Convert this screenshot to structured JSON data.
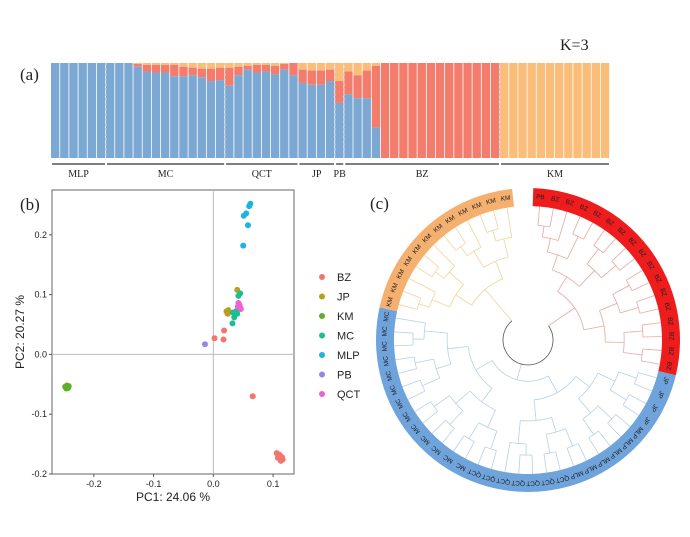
{
  "panel_labels": {
    "a": "(a)",
    "b": "(b)",
    "c": "(c)"
  },
  "colors": {
    "blue": "#7ca9d4",
    "red": "#f47c6c",
    "orange": "#fbbd7a",
    "tree_red": "#ee1c1c",
    "tree_orange": "#f5b070",
    "tree_blue": "#6fa3dc"
  },
  "chart_data": [
    {
      "type": "bar",
      "subtype": "stacked-admixture",
      "title": "K=3",
      "components": [
        "blue",
        "red",
        "orange"
      ],
      "groups": [
        {
          "name": "MLP",
          "n": 6
        },
        {
          "name": "MC",
          "n": 13
        },
        {
          "name": "QCT",
          "n": 8
        },
        {
          "name": "JP",
          "n": 4
        },
        {
          "name": "PB",
          "n": 1
        },
        {
          "name": "BZ",
          "n": 17
        },
        {
          "name": "KM",
          "n": 12
        }
      ],
      "samples": [
        [
          1,
          0,
          0
        ],
        [
          1,
          0,
          0
        ],
        [
          1,
          0,
          0
        ],
        [
          1,
          0,
          0
        ],
        [
          1,
          0,
          0
        ],
        [
          1,
          0,
          0
        ],
        [
          1,
          0,
          0
        ],
        [
          1,
          0,
          0
        ],
        [
          1,
          0,
          0
        ],
        [
          0.96,
          0.03,
          0.01
        ],
        [
          0.91,
          0.07,
          0.02
        ],
        [
          0.9,
          0.08,
          0.02
        ],
        [
          0.9,
          0.08,
          0.02
        ],
        [
          0.86,
          0.12,
          0.02
        ],
        [
          0.86,
          0.1,
          0.04
        ],
        [
          0.87,
          0.08,
          0.05
        ],
        [
          0.85,
          0.09,
          0.06
        ],
        [
          0.81,
          0.13,
          0.06
        ],
        [
          0.82,
          0.13,
          0.05
        ],
        [
          0.76,
          0.19,
          0.05
        ],
        [
          0.87,
          0.09,
          0.04
        ],
        [
          0.93,
          0.04,
          0.03
        ],
        [
          0.9,
          0.08,
          0.02
        ],
        [
          0.91,
          0.07,
          0.02
        ],
        [
          0.88,
          0.09,
          0.03
        ],
        [
          0.93,
          0.06,
          0.01
        ],
        [
          0.87,
          0.13,
          0
        ],
        [
          0.79,
          0.14,
          0.07
        ],
        [
          0.77,
          0.15,
          0.08
        ],
        [
          0.77,
          0.15,
          0.08
        ],
        [
          0.81,
          0.12,
          0.07
        ],
        [
          0.58,
          0.23,
          0.19
        ],
        [
          0.67,
          0.24,
          0.09
        ],
        [
          0.63,
          0.24,
          0.13
        ],
        [
          0.63,
          0.29,
          0.08
        ],
        [
          0.32,
          0.65,
          0.03
        ],
        [
          0,
          1,
          0
        ],
        [
          0,
          1,
          0
        ],
        [
          0,
          1,
          0
        ],
        [
          0,
          1,
          0
        ],
        [
          0,
          1,
          0
        ],
        [
          0,
          1,
          0
        ],
        [
          0,
          1,
          0
        ],
        [
          0,
          1,
          0
        ],
        [
          0,
          1,
          0
        ],
        [
          0,
          1,
          0
        ],
        [
          0,
          1,
          0
        ],
        [
          0,
          1,
          0
        ],
        [
          0,
          1,
          0
        ],
        [
          0,
          0,
          1
        ],
        [
          0,
          0,
          1
        ],
        [
          0,
          0,
          1
        ],
        [
          0,
          0,
          1
        ],
        [
          0,
          0,
          1
        ],
        [
          0,
          0,
          1
        ],
        [
          0,
          0,
          1
        ],
        [
          0,
          0,
          1
        ],
        [
          0,
          0,
          1
        ],
        [
          0,
          0,
          1
        ],
        [
          0,
          0,
          1
        ],
        [
          0,
          0,
          1
        ]
      ],
      "ylim": [
        0,
        1
      ]
    },
    {
      "type": "scatter",
      "xlabel": "PC1: 24.06 %",
      "ylabel": "PC2: 20.27 %",
      "xlim": [
        -0.27,
        0.135
      ],
      "ylim": [
        -0.2,
        0.275
      ],
      "xticks": [
        -0.2,
        -0.1,
        0.0,
        0.1
      ],
      "xtick_labels": [
        "-0.2",
        "-0.1",
        "0.0",
        "0.1"
      ],
      "yticks": [
        -0.2,
        -0.1,
        0.0,
        0.1,
        0.2
      ],
      "ytick_labels": [
        "-0.2",
        "-0.1",
        "0.0",
        "0.1",
        "0.2"
      ],
      "reference_lines": {
        "x": 0,
        "y": 0
      },
      "legend_position": "right",
      "series": [
        {
          "name": "BZ",
          "color": "#f0776d",
          "points": [
            [
              0.002,
              0.027
            ],
            [
              0.018,
              0.04
            ],
            [
              0.017,
              0.025
            ],
            [
              0.066,
              -0.07
            ],
            [
              0.106,
              -0.165
            ],
            [
              0.11,
              -0.17
            ],
            [
              0.112,
              -0.175
            ],
            [
              0.115,
              -0.172
            ],
            [
              0.113,
              -0.178
            ],
            [
              0.108,
              -0.173
            ],
            [
              0.116,
              -0.176
            ],
            [
              0.111,
              -0.168
            ]
          ]
        },
        {
          "name": "JP",
          "color": "#b79f1f",
          "points": [
            [
              0.04,
              0.108
            ],
            [
              0.022,
              0.072
            ],
            [
              0.025,
              0.074
            ],
            [
              0.024,
              0.068
            ]
          ]
        },
        {
          "name": "KM",
          "color": "#5daf2a",
          "points": [
            [
              -0.248,
              -0.054
            ],
            [
              -0.245,
              -0.052
            ],
            [
              -0.243,
              -0.056
            ],
            [
              -0.246,
              -0.057
            ],
            [
              -0.242,
              -0.053
            ],
            [
              -0.244,
              -0.055
            ]
          ]
        },
        {
          "name": "MC",
          "color": "#1cbd93",
          "points": [
            [
              0.045,
              0.102
            ],
            [
              0.042,
              0.098
            ],
            [
              0.033,
              0.07
            ],
            [
              0.036,
              0.066
            ],
            [
              0.038,
              0.072
            ],
            [
              0.032,
              0.052
            ],
            [
              0.035,
              0.062
            ],
            [
              0.04,
              0.068
            ]
          ]
        },
        {
          "name": "MLP",
          "color": "#1eb3e0",
          "points": [
            [
              0.062,
              0.252
            ],
            [
              0.06,
              0.248
            ],
            [
              0.055,
              0.236
            ],
            [
              0.051,
              0.232
            ],
            [
              0.058,
              0.216
            ],
            [
              0.05,
              0.182
            ]
          ]
        },
        {
          "name": "PB",
          "color": "#9a86e0",
          "points": [
            [
              -0.014,
              0.017
            ]
          ]
        },
        {
          "name": "QCT",
          "color": "#ec62d4",
          "points": [
            [
              0.042,
              0.086
            ],
            [
              0.044,
              0.082
            ],
            [
              0.045,
              0.078
            ],
            [
              0.041,
              0.08
            ],
            [
              0.046,
              0.076
            ],
            [
              0.043,
              0.084
            ]
          ]
        }
      ]
    },
    {
      "type": "dendrogram",
      "layout": "circular",
      "leaves": [
        {
          "label": "PB",
          "clade": "red"
        },
        {
          "label": "BZ",
          "clade": "red"
        },
        {
          "label": "BZ",
          "clade": "red"
        },
        {
          "label": "BZ",
          "clade": "red"
        },
        {
          "label": "BZ",
          "clade": "red"
        },
        {
          "label": "BZ",
          "clade": "red"
        },
        {
          "label": "BZ",
          "clade": "red"
        },
        {
          "label": "BZ",
          "clade": "red"
        },
        {
          "label": "BZ",
          "clade": "red"
        },
        {
          "label": "BZ",
          "clade": "red"
        },
        {
          "label": "BZ",
          "clade": "red"
        },
        {
          "label": "BZ",
          "clade": "red"
        },
        {
          "label": "BZ",
          "clade": "red"
        },
        {
          "label": "BZ",
          "clade": "red"
        },
        {
          "label": "BZ",
          "clade": "red"
        },
        {
          "label": "BZ",
          "clade": "red"
        },
        {
          "label": "BZ",
          "clade": "red"
        },
        {
          "label": "JP",
          "clade": "blue"
        },
        {
          "label": "JP",
          "clade": "blue"
        },
        {
          "label": "JP",
          "clade": "blue"
        },
        {
          "label": "JP",
          "clade": "blue"
        },
        {
          "label": "MLP",
          "clade": "blue"
        },
        {
          "label": "MLP",
          "clade": "blue"
        },
        {
          "label": "MLP",
          "clade": "blue"
        },
        {
          "label": "MLP",
          "clade": "blue"
        },
        {
          "label": "MLP",
          "clade": "blue"
        },
        {
          "label": "MLP",
          "clade": "blue"
        },
        {
          "label": "QCT",
          "clade": "blue"
        },
        {
          "label": "QCT",
          "clade": "blue"
        },
        {
          "label": "QCT",
          "clade": "blue"
        },
        {
          "label": "QCT",
          "clade": "blue"
        },
        {
          "label": "QCT",
          "clade": "blue"
        },
        {
          "label": "QCT",
          "clade": "blue"
        },
        {
          "label": "QCT",
          "clade": "blue"
        },
        {
          "label": "MC",
          "clade": "blue"
        },
        {
          "label": "MC",
          "clade": "blue"
        },
        {
          "label": "MC",
          "clade": "blue"
        },
        {
          "label": "MC",
          "clade": "blue"
        },
        {
          "label": "MC",
          "clade": "blue"
        },
        {
          "label": "MC",
          "clade": "blue"
        },
        {
          "label": "MC",
          "clade": "blue"
        },
        {
          "label": "MC",
          "clade": "blue"
        },
        {
          "label": "MC",
          "clade": "blue"
        },
        {
          "label": "MC",
          "clade": "blue"
        },
        {
          "label": "MC",
          "clade": "blue"
        },
        {
          "label": "MC",
          "clade": "blue"
        },
        {
          "label": "MC",
          "clade": "blue"
        },
        {
          "label": "KM",
          "clade": "orange"
        },
        {
          "label": "KM",
          "clade": "orange"
        },
        {
          "label": "KM",
          "clade": "orange"
        },
        {
          "label": "KM",
          "clade": "orange"
        },
        {
          "label": "KM",
          "clade": "orange"
        },
        {
          "label": "KM",
          "clade": "orange"
        },
        {
          "label": "KM",
          "clade": "orange"
        },
        {
          "label": "KM",
          "clade": "orange"
        },
        {
          "label": "KM",
          "clade": "orange"
        },
        {
          "label": "KM",
          "clade": "orange"
        },
        {
          "label": "KM",
          "clade": "orange"
        },
        {
          "label": "KM",
          "clade": "orange"
        }
      ]
    }
  ]
}
